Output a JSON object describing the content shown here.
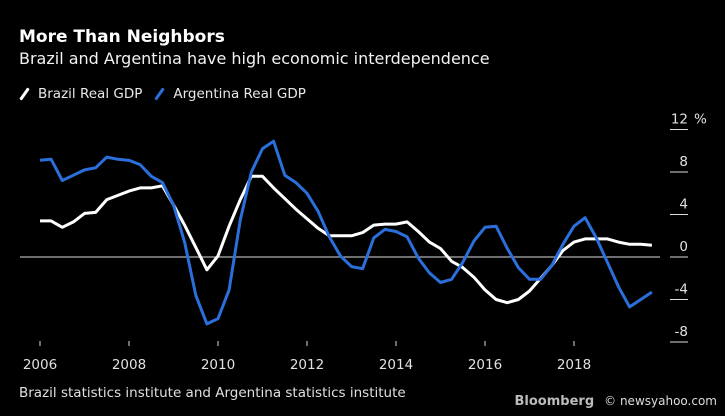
{
  "chart_data": {
    "type": "line",
    "title": "More Than Neighbors",
    "subtitle": "Brazil and Argentina have high economic interdependence",
    "source": "Brazil statistics institute and Argentina statistics institute",
    "watermark": "© newsyahoo.com",
    "logo": "Bloomberg",
    "y_unit": "%",
    "ylim": [
      -8,
      12
    ],
    "y_ticks": [
      "12",
      "8",
      "4",
      "0",
      "-4",
      "-8"
    ],
    "x_ticks": [
      "2006",
      "2008",
      "2010",
      "2012",
      "2014",
      "2016",
      "2018"
    ],
    "xlim": [
      2006,
      2019.75
    ],
    "legend_position": "top-left",
    "grid": false,
    "x": [
      2006,
      2006.25,
      2006.5,
      2006.75,
      2007,
      2007.25,
      2007.5,
      2007.75,
      2008,
      2008.25,
      2008.5,
      2008.75,
      2009,
      2009.25,
      2009.5,
      2009.75,
      2010,
      2010.25,
      2010.5,
      2010.75,
      2011,
      2011.25,
      2011.5,
      2011.75,
      2012,
      2012.25,
      2012.5,
      2012.75,
      2013,
      2013.25,
      2013.5,
      2013.75,
      2014,
      2014.25,
      2014.5,
      2014.75,
      2015,
      2015.25,
      2015.5,
      2015.75,
      2016,
      2016.25,
      2016.5,
      2016.75,
      2017,
      2017.25,
      2017.5,
      2017.75,
      2018,
      2018.25,
      2018.5,
      2018.75,
      2019,
      2019.25,
      2019.5,
      2019.75
    ],
    "series": [
      {
        "name": "Brazil Real GDP",
        "color": "#ffffff",
        "values": [
          3.4,
          3.4,
          2.8,
          3.3,
          4.1,
          4.2,
          5.4,
          5.8,
          6.2,
          6.5,
          6.5,
          6.7,
          4.9,
          3.0,
          0.9,
          -1.2,
          0.1,
          2.9,
          5.4,
          7.6,
          7.6,
          6.5,
          5.5,
          4.5,
          3.6,
          2.7,
          2.0,
          2.0,
          2.0,
          2.3,
          3.0,
          3.1,
          3.1,
          3.3,
          2.4,
          1.4,
          0.8,
          -0.4,
          -1.0,
          -1.9,
          -3.1,
          -4.0,
          -4.3,
          -4.0,
          -3.2,
          -2.0,
          -0.8,
          0.6,
          1.4,
          1.7,
          1.7,
          1.7,
          1.4,
          1.2,
          1.2,
          1.1
        ]
      },
      {
        "name": "Argentina Real GDP",
        "color": "#2a6fdb",
        "values": [
          9.1,
          9.2,
          7.2,
          7.7,
          8.2,
          8.4,
          9.4,
          9.2,
          9.1,
          8.7,
          7.6,
          7.0,
          4.9,
          1.4,
          -3.6,
          -6.3,
          -5.8,
          -3.1,
          3.5,
          8.0,
          10.2,
          10.9,
          7.7,
          7.0,
          6.0,
          4.3,
          1.9,
          0.1,
          -0.9,
          -1.1,
          1.8,
          2.6,
          2.4,
          1.9,
          -0.1,
          -1.5,
          -2.4,
          -2.1,
          -0.5,
          1.5,
          2.8,
          2.9,
          0.8,
          -1.0,
          -2.1,
          -2.1,
          -0.8,
          1.2,
          2.9,
          3.7,
          1.8,
          -0.5,
          -2.8,
          -4.7,
          -4.0,
          -3.3
        ]
      }
    ]
  }
}
